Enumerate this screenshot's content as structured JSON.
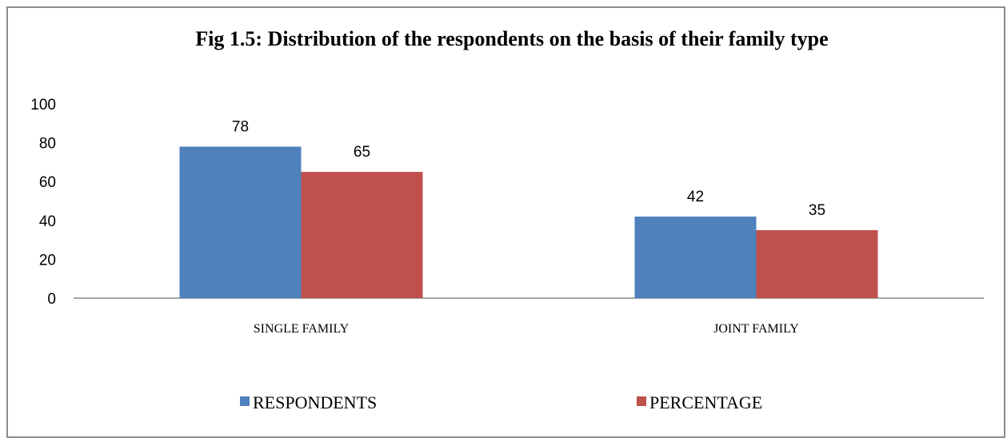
{
  "chart_data": {
    "type": "bar",
    "title": "Fig 1.5: Distribution of the respondents on the basis of their family type",
    "categories": [
      "SINGLE FAMILY",
      "JOINT FAMILY"
    ],
    "series": [
      {
        "name": "RESPONDENTS",
        "values": [
          78,
          42
        ],
        "color": "#4f81bd"
      },
      {
        "name": "PERCENTAGE",
        "values": [
          65,
          35
        ],
        "color": "#c0504d"
      }
    ],
    "xlabel": "",
    "ylabel": "",
    "ylim": [
      0,
      100
    ],
    "yticks": [
      0,
      20,
      40,
      60,
      80,
      100
    ],
    "grid": false,
    "legend": "bottom"
  }
}
